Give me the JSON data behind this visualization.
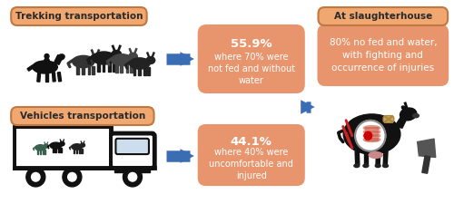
{
  "bg_color": "#ffffff",
  "box_color": "#E8956D",
  "label_color": "#F0A870",
  "label_edge_color": "#C07840",
  "arrow_color": "#3B6DB5",
  "text_color": "#ffffff",
  "label_text_color": "#2a2a2a",
  "top_label": "Trekking transportation",
  "bottom_label": "Vehicles transportation",
  "right_label": "At slaughterhouse",
  "top_stat_bold": "55.9%",
  "top_stat_sub": "where 70% were\nnot fed and without\nwater",
  "bottom_stat_bold": "44.1%",
  "bottom_stat_sub": "where 40% were\nuncomfortable and\ninjured",
  "right_text": "80% no fed and water,\nwith fighting and\noccurrence of injuries",
  "dark_color": "#111111",
  "dark2_color": "#333333",
  "cattle_gray": "#555555",
  "injury_red": "#cc0000",
  "injury_pink": "#E8A090",
  "bandage_tan": "#D4A860",
  "slash_red": "#cc2222"
}
